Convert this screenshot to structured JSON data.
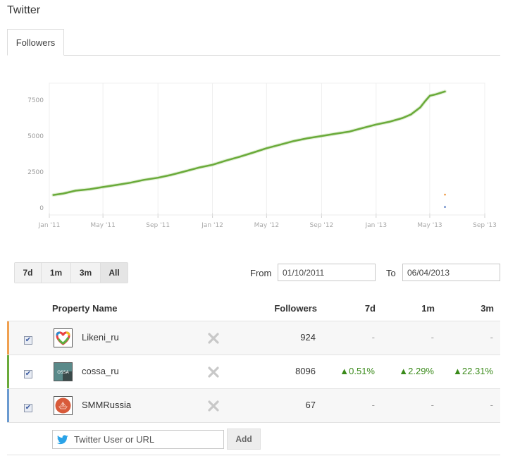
{
  "page": {
    "title": "Twitter"
  },
  "tabs": [
    {
      "label": "Followers",
      "active": true
    }
  ],
  "chart_data": {
    "type": "line",
    "title": "",
    "xlabel": "",
    "ylabel": "",
    "ylim": [
      0,
      8500
    ],
    "yticks": [
      0,
      2500,
      5000,
      7500
    ],
    "ytick_labels": [
      "0",
      "2500",
      "5000",
      "7500"
    ],
    "xtick_labels": [
      "Jan '11",
      "May '11",
      "Sep '11",
      "Jan '12",
      "May '12",
      "Sep '12",
      "Jan '13",
      "May '13",
      "Sep '13"
    ],
    "grid": {
      "vertical": true,
      "horizontal": false
    },
    "legend": "none",
    "series": [
      {
        "name": "cossa_ru",
        "color": "#6aaa3a",
        "x": [
          "2011-01-10",
          "2011-02-01",
          "2011-03-01",
          "2011-04-01",
          "2011-05-01",
          "2011-06-01",
          "2011-07-01",
          "2011-08-01",
          "2011-09-01",
          "2011-10-01",
          "2011-11-01",
          "2011-12-01",
          "2012-01-01",
          "2012-02-01",
          "2012-03-01",
          "2012-04-01",
          "2012-05-01",
          "2012-06-01",
          "2012-07-01",
          "2012-08-01",
          "2012-09-01",
          "2012-10-01",
          "2012-11-01",
          "2012-12-01",
          "2013-01-01",
          "2013-02-01",
          "2013-03-01",
          "2013-03-20",
          "2013-04-10",
          "2013-04-20",
          "2013-05-01",
          "2013-05-15",
          "2013-06-04"
        ],
        "values": [
          900,
          1000,
          1200,
          1300,
          1450,
          1600,
          1750,
          1950,
          2100,
          2300,
          2550,
          2800,
          3000,
          3300,
          3550,
          3850,
          4150,
          4400,
          4650,
          4850,
          5000,
          5150,
          5300,
          5550,
          5800,
          6000,
          6250,
          6500,
          7000,
          7400,
          7800,
          7900,
          8096
        ]
      },
      {
        "name": "Likeni_ru",
        "color": "#f0a050",
        "x": [
          "2013-06-04"
        ],
        "values": [
          924
        ]
      },
      {
        "name": "SMMRussia",
        "color": "#6a8ac8",
        "x": [
          "2013-06-04"
        ],
        "values": [
          67
        ]
      }
    ]
  },
  "range": {
    "buttons": [
      {
        "label": "7d",
        "active": false
      },
      {
        "label": "1m",
        "active": false
      },
      {
        "label": "3m",
        "active": false
      },
      {
        "label": "All",
        "active": true
      }
    ]
  },
  "dates": {
    "from_label": "From",
    "from_value": "01/10/2011",
    "to_label": "To",
    "to_value": "06/04/2013"
  },
  "table": {
    "headers": {
      "name": "Property Name",
      "followers": "Followers",
      "d7": "7d",
      "m1": "1m",
      "m3": "3m"
    },
    "rows": [
      {
        "name": "Likeni_ru",
        "color": "#f0a050",
        "checked": true,
        "followers": "924",
        "d7": "-",
        "m1": "-",
        "m3": "-",
        "avatar": "heart-logo-icon"
      },
      {
        "name": "cossa_ru",
        "color": "#6aaa3a",
        "checked": true,
        "followers": "8096",
        "d7": "▲0.51%",
        "m1": "▲2.29%",
        "m3": "▲22.31%",
        "avatar": "cossa-logo-icon"
      },
      {
        "name": "SMMRussia",
        "color": "#6a9ad0",
        "checked": true,
        "followers": "67",
        "d7": "-",
        "m1": "-",
        "m3": "-",
        "avatar": "smmrussia-logo-icon"
      }
    ]
  },
  "add": {
    "placeholder": "Twitter User or URL",
    "button_label": "Add",
    "icon": "twitter-bird-icon"
  }
}
